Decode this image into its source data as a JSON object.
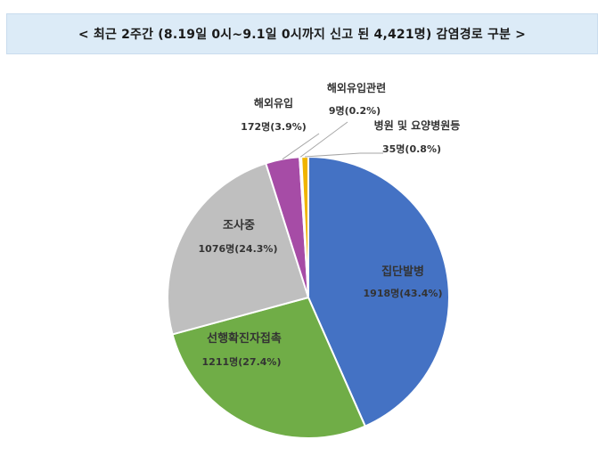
{
  "title": "<  최근 2주간 (8.19일 0시~9.1일 0시까지 신고 된 4,421명)   감염경로 구분  >",
  "chart_data": {
    "type": "pie",
    "title": "최근 2주간 (8.19일 0시~9.1일 0시까지 신고 된 4,421명) 감염경로 구분",
    "slices": [
      {
        "name": "집단발병",
        "count": 1918,
        "count_label": "1918명",
        "percent": 43.4,
        "value_label": "1918명(43.4%)",
        "color": "#4472c4"
      },
      {
        "name": "선행확진자접촉",
        "count": 1211,
        "count_label": "1211명",
        "percent": 27.4,
        "value_label": "1211명(27.4%)",
        "color": "#70ad47"
      },
      {
        "name": "조사중",
        "count": 1076,
        "count_label": "1076명",
        "percent": 24.3,
        "value_label": "1076명(24.3%)",
        "color": "#bfbfbf"
      },
      {
        "name": "해외유입",
        "count": 172,
        "count_label": "172명",
        "percent": 3.9,
        "value_label": "172명(3.9%)",
        "color": "#a64ca6"
      },
      {
        "name": "해외유입관련",
        "count": 9,
        "count_label": "9명",
        "percent": 0.2,
        "value_label": "9명(0.2%)",
        "color": "#ffc000"
      },
      {
        "name": "병원 및 요양병원등",
        "count": 35,
        "count_label": "35명",
        "percent": 0.8,
        "value_label": "35명(0.8%)",
        "color": "#f0b400"
      }
    ],
    "start_angle_deg": 0,
    "direction": "clockwise",
    "labels_inside": [
      "집단발병",
      "선행확진자접촉",
      "조사중"
    ],
    "labels_outside_with_leaders": [
      "해외유입",
      "해외유입관련",
      "병원 및 요양병원등"
    ]
  }
}
